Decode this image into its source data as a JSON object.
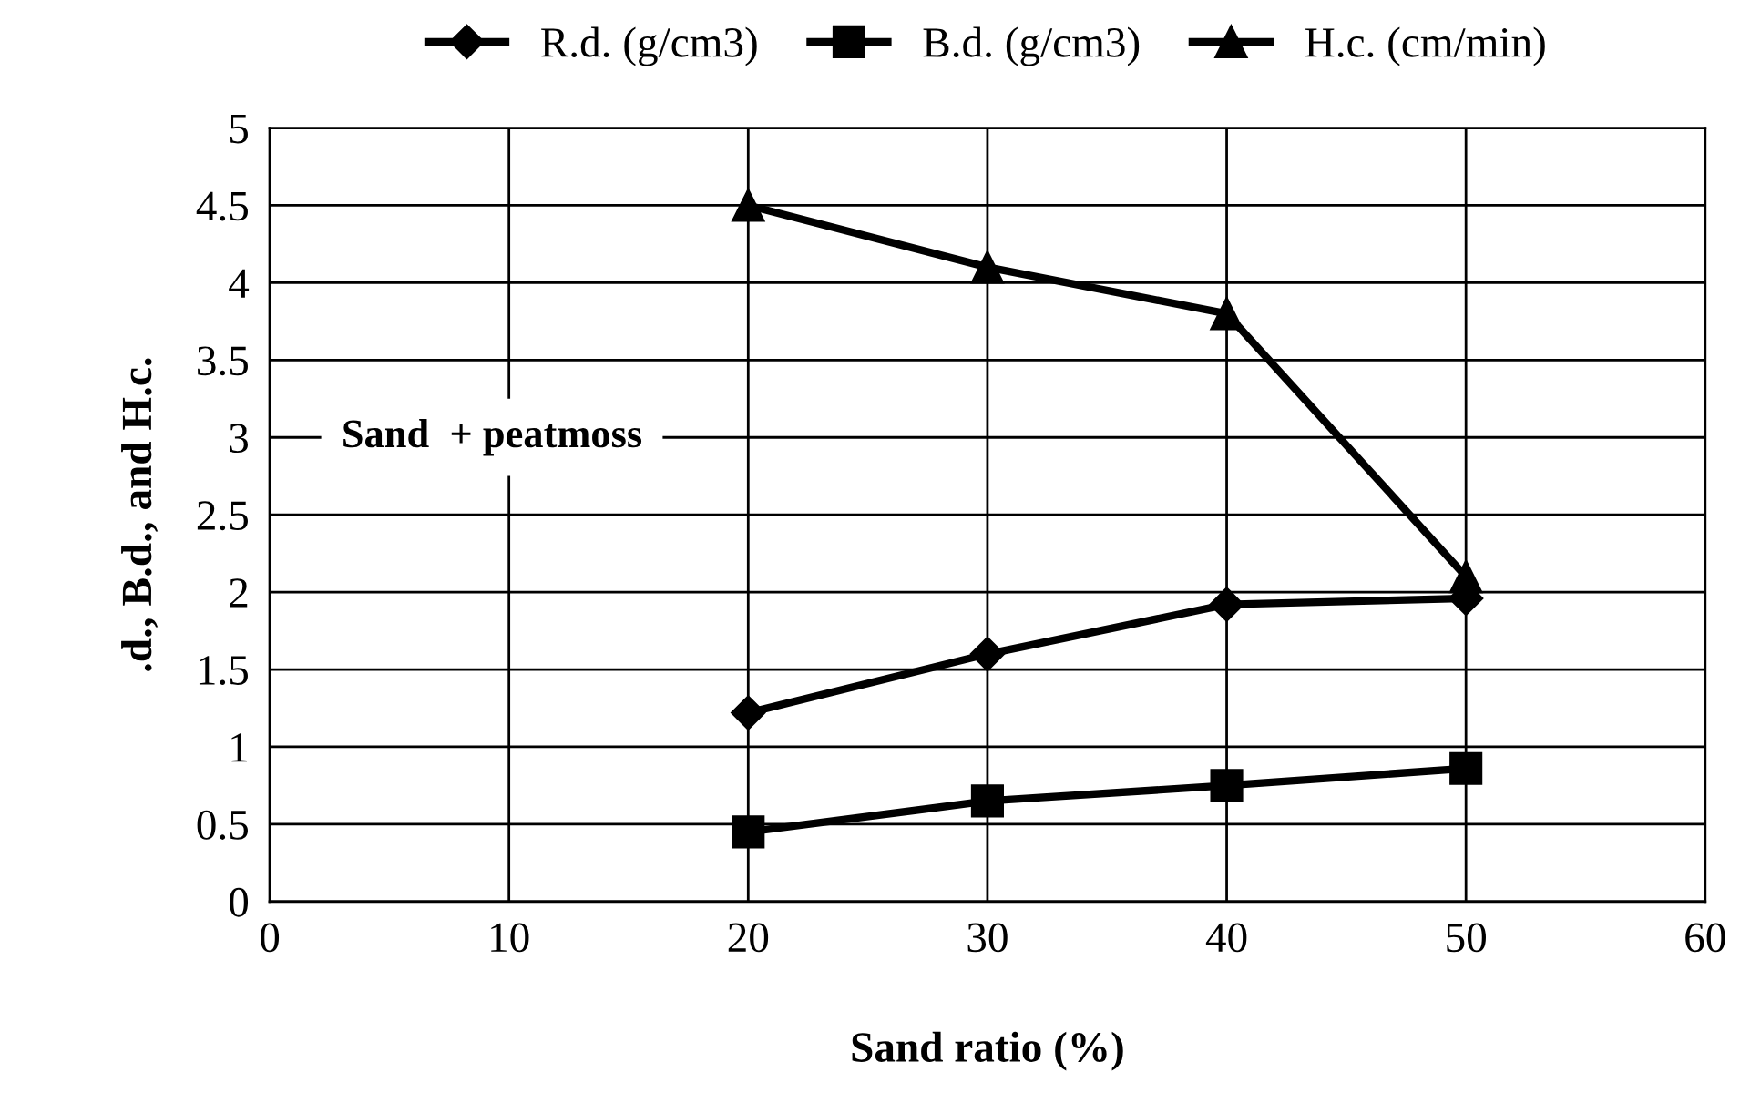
{
  "chart_data": {
    "type": "line",
    "xlabel": "Sand ratio (%)",
    "ylabel": ".d., B.d., and H.c.",
    "x": [
      20,
      30,
      40,
      50
    ],
    "series": [
      {
        "name": "R.d. (g/cm3)",
        "color": "#000000",
        "marker": "diamond",
        "values": [
          1.22,
          1.6,
          1.92,
          1.96
        ]
      },
      {
        "name": "B.d. (g/cm3)",
        "color": "#000000",
        "marker": "square",
        "values": [
          0.45,
          0.65,
          0.75,
          0.86
        ]
      },
      {
        "name": "H.c. (cm/min)",
        "color": "#000000",
        "marker": "triangle",
        "values": [
          4.5,
          4.1,
          3.8,
          2.1
        ]
      }
    ],
    "xlim": [
      0,
      60
    ],
    "xticks": [
      0,
      10,
      20,
      30,
      40,
      50,
      60
    ],
    "ylim": [
      0,
      5
    ],
    "yticks": [
      0,
      0.5,
      1,
      1.5,
      2,
      2.5,
      3,
      3.5,
      4,
      4.5,
      5
    ],
    "grid": true,
    "legend": "top",
    "line_style": "solid",
    "annotations": [
      "Sand  + peatmoss"
    ]
  }
}
